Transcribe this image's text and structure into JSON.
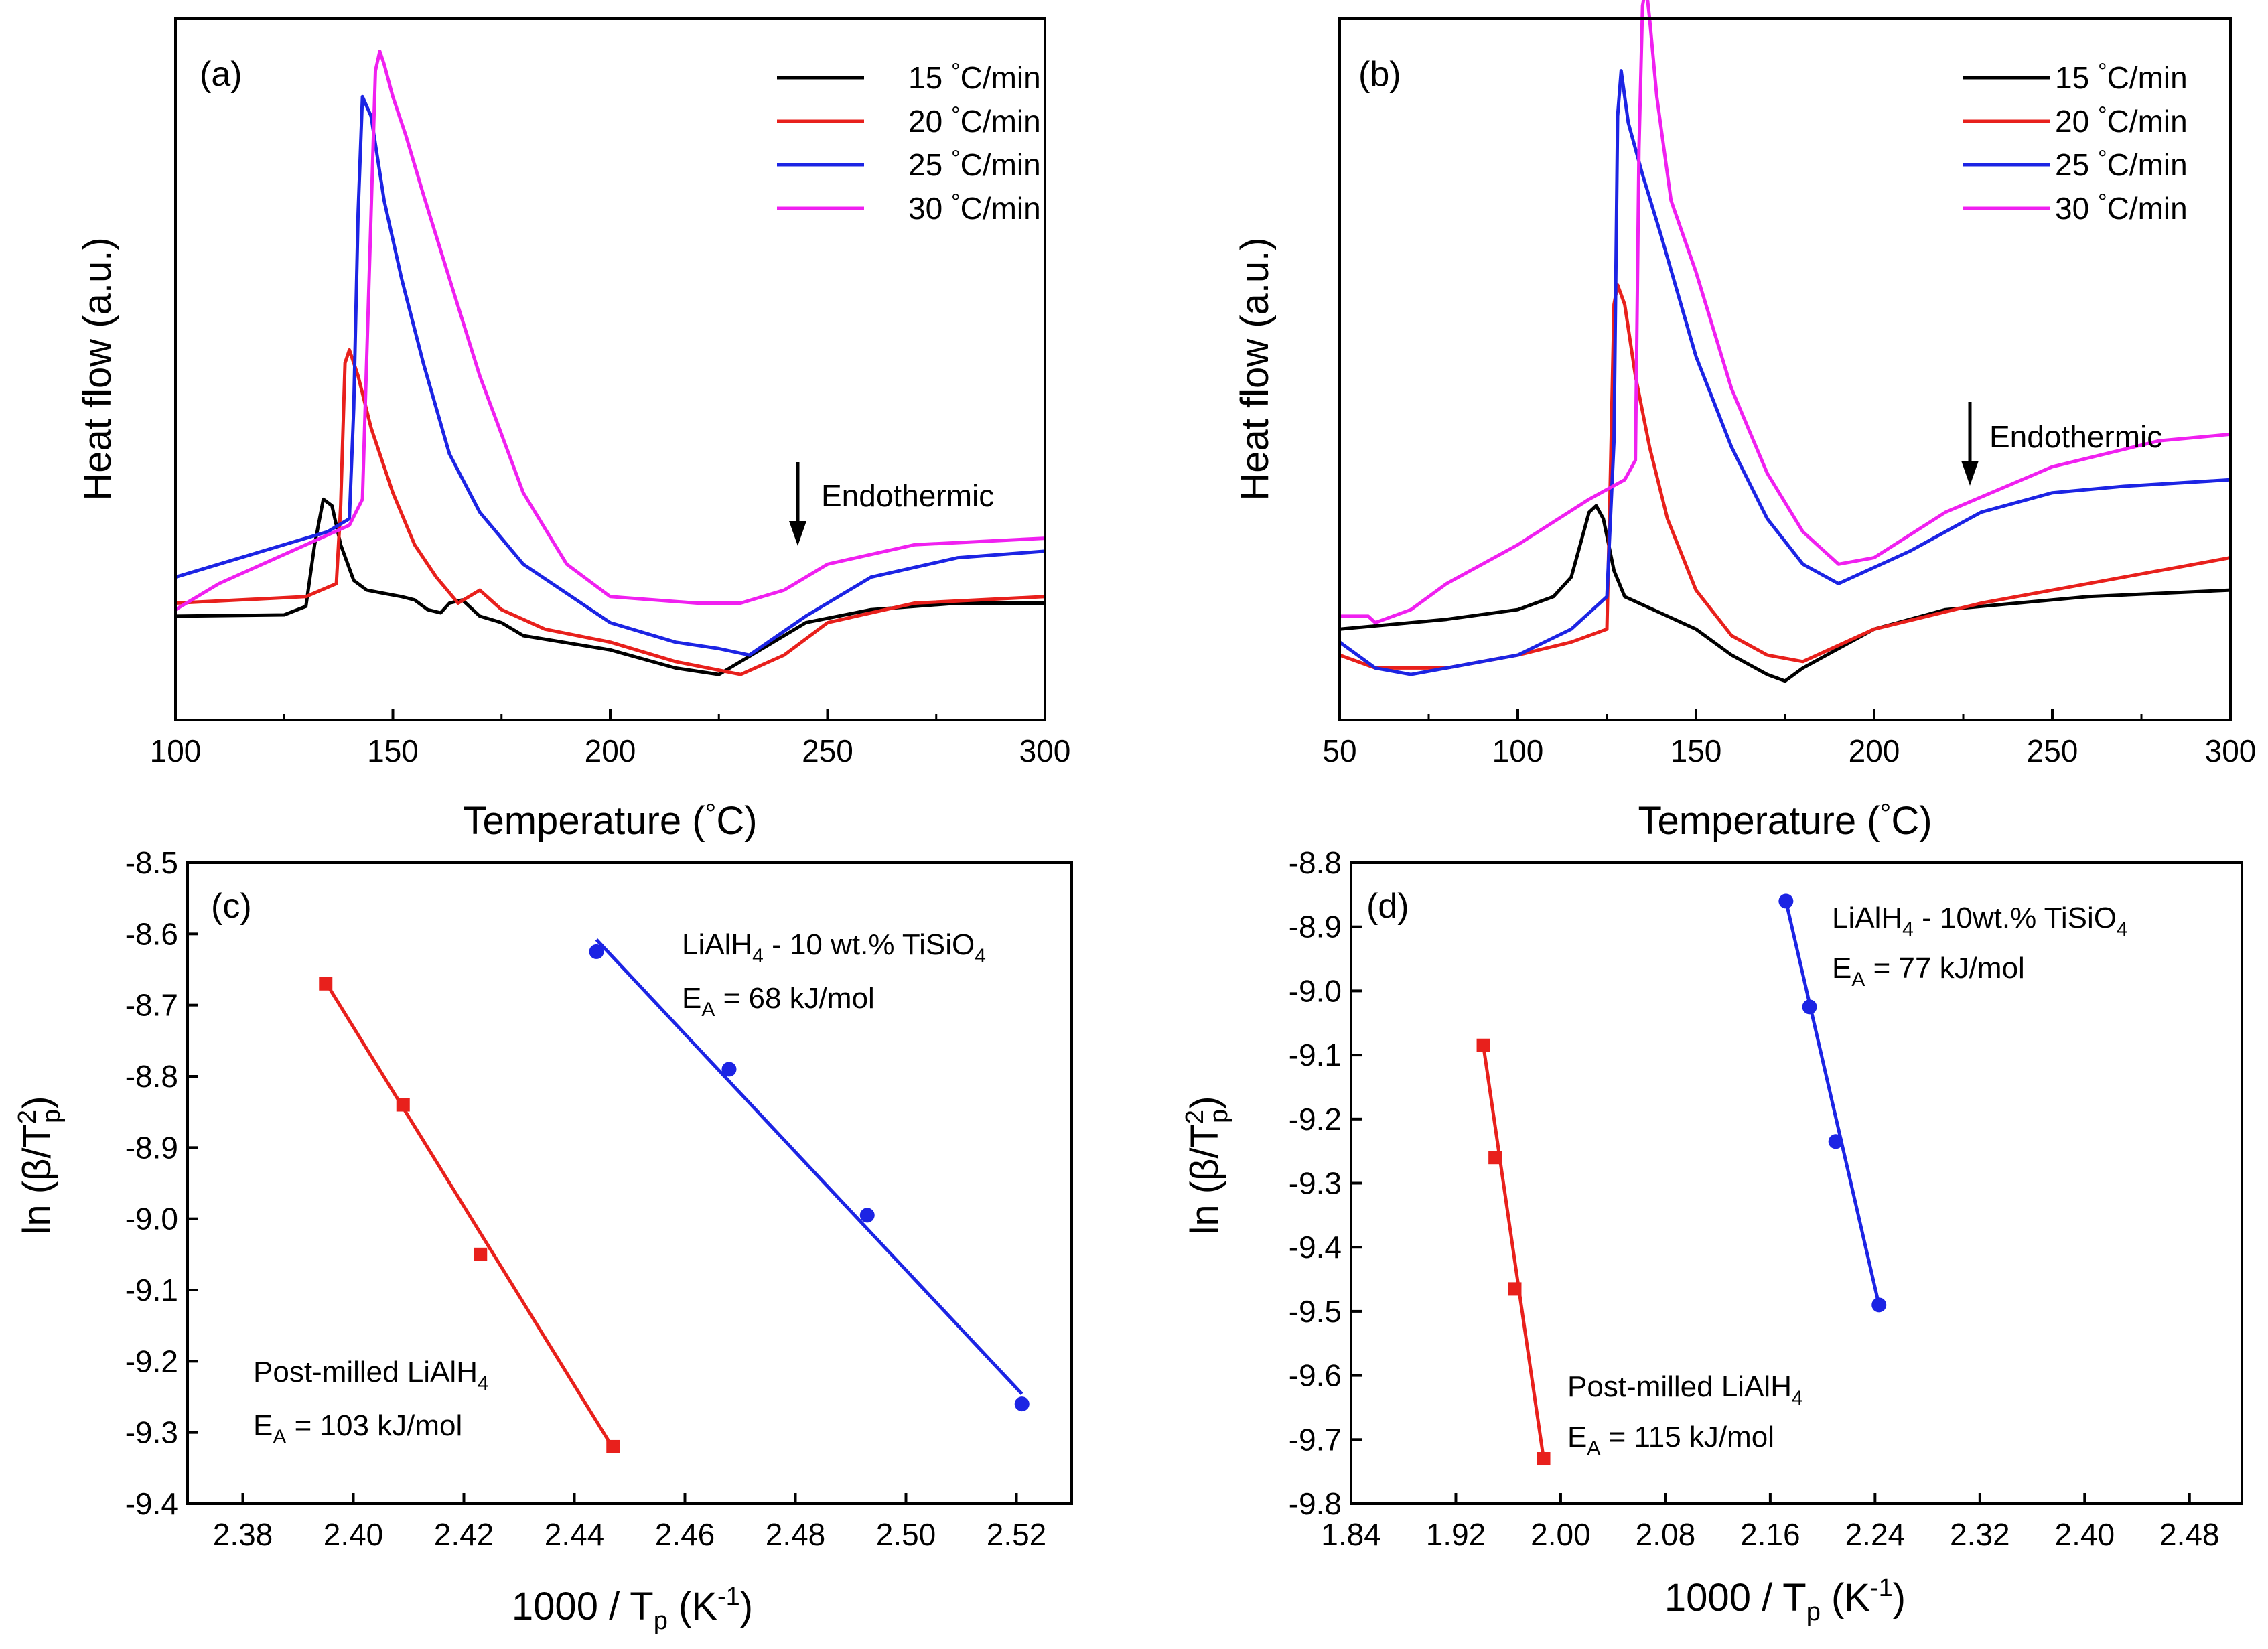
{
  "chart_data": [
    {
      "panel": "(a)",
      "type": "line",
      "xlabel": "Temperature (°C)",
      "ylabel": "Heat flow (a.u.)",
      "xlim": [
        100,
        300
      ],
      "ylim": [
        -0.8,
        10
      ],
      "xticks": [
        100,
        150,
        200,
        250,
        300
      ],
      "y_tick_labels": false,
      "annotation": "Endothermic",
      "annotation_arrow": "down",
      "legend_position": "top-right",
      "series": [
        {
          "name": "15 °C/min",
          "color": "#000000",
          "x": [
            100,
            125,
            130,
            132,
            134,
            136,
            138,
            141,
            144,
            148,
            152,
            155,
            158,
            161,
            163,
            166,
            170,
            175,
            180,
            200,
            215,
            225,
            235,
            245,
            260,
            280,
            300
          ],
          "y": [
            0.8,
            0.82,
            0.95,
            1.9,
            2.6,
            2.5,
            1.9,
            1.35,
            1.2,
            1.15,
            1.1,
            1.05,
            0.9,
            0.85,
            1.0,
            1.05,
            0.8,
            0.7,
            0.5,
            0.28,
            0.0,
            -0.1,
            0.3,
            0.7,
            0.9,
            1.0,
            1.0
          ]
        },
        {
          "name": "20 °C/min",
          "color": "#e8201c",
          "x": [
            100,
            130,
            137,
            138,
            139,
            140,
            142,
            145,
            150,
            155,
            160,
            165,
            170,
            175,
            185,
            200,
            215,
            230,
            240,
            250,
            270,
            300
          ],
          "y": [
            1.0,
            1.1,
            1.3,
            2.5,
            4.7,
            4.9,
            4.5,
            3.7,
            2.7,
            1.9,
            1.4,
            1.0,
            1.2,
            0.9,
            0.6,
            0.4,
            0.1,
            -0.1,
            0.2,
            0.7,
            1.0,
            1.1
          ]
        },
        {
          "name": "25 °C/min",
          "color": "#1c24e4",
          "x": [
            100,
            120,
            135,
            140,
            141,
            142,
            143,
            145,
            148,
            152,
            157,
            163,
            170,
            180,
            200,
            215,
            225,
            232,
            245,
            260,
            280,
            300
          ],
          "y": [
            1.4,
            1.8,
            2.1,
            2.3,
            4.0,
            7.0,
            8.8,
            8.5,
            7.2,
            6.0,
            4.7,
            3.3,
            2.4,
            1.6,
            0.7,
            0.4,
            0.3,
            0.2,
            0.8,
            1.4,
            1.7,
            1.8
          ]
        },
        {
          "name": "30 °C/min",
          "color": "#f020f0",
          "x": [
            100,
            110,
            120,
            130,
            140,
            143,
            145,
            146,
            147,
            148,
            150,
            153,
            157,
            163,
            170,
            180,
            190,
            200,
            220,
            230,
            240,
            250,
            270,
            300
          ],
          "y": [
            0.9,
            1.3,
            1.6,
            1.9,
            2.2,
            2.6,
            7.0,
            9.2,
            9.5,
            9.3,
            8.8,
            8.2,
            7.3,
            6.0,
            4.5,
            2.7,
            1.6,
            1.1,
            1.0,
            1.0,
            1.2,
            1.6,
            1.9,
            2.0
          ]
        }
      ]
    },
    {
      "panel": "(b)",
      "type": "line",
      "xlabel": "Temperature (°C)",
      "ylabel": "Heat flow (a.u.)",
      "xlim": [
        50,
        300
      ],
      "ylim": [
        -0.8,
        10
      ],
      "xticks": [
        50,
        100,
        150,
        200,
        250,
        300
      ],
      "y_tick_labels": false,
      "annotation": "Endothermic",
      "annotation_arrow": "down",
      "legend_position": "top-right",
      "series": [
        {
          "name": "15 °C/min",
          "color": "#000000",
          "x": [
            50,
            80,
            100,
            110,
            115,
            118,
            120,
            122,
            124,
            127,
            130,
            140,
            150,
            160,
            170,
            175,
            180,
            200,
            220,
            260,
            300
          ],
          "y": [
            0.6,
            0.75,
            0.9,
            1.1,
            1.4,
            2.0,
            2.4,
            2.5,
            2.3,
            1.5,
            1.1,
            0.85,
            0.6,
            0.2,
            -0.1,
            -0.2,
            0.0,
            0.6,
            0.9,
            1.1,
            1.2
          ]
        },
        {
          "name": "20 °C/min",
          "color": "#e8201c",
          "x": [
            50,
            60,
            80,
            100,
            115,
            125,
            126,
            127,
            128,
            130,
            133,
            137,
            142,
            150,
            160,
            170,
            180,
            200,
            230,
            260,
            300
          ],
          "y": [
            0.2,
            0.0,
            0.0,
            0.2,
            0.4,
            0.6,
            3.0,
            5.6,
            5.9,
            5.6,
            4.5,
            3.4,
            2.3,
            1.2,
            0.5,
            0.2,
            0.1,
            0.6,
            1.0,
            1.3,
            1.7
          ]
        },
        {
          "name": "25 °C/min",
          "color": "#1c24e4",
          "x": [
            50,
            60,
            70,
            80,
            100,
            115,
            125,
            127,
            128,
            129,
            131,
            135,
            140,
            150,
            160,
            170,
            180,
            190,
            210,
            230,
            250,
            270,
            300
          ],
          "y": [
            0.4,
            0.0,
            -0.1,
            0.0,
            0.2,
            0.6,
            1.1,
            3.5,
            8.5,
            9.2,
            8.4,
            7.6,
            6.7,
            4.8,
            3.4,
            2.3,
            1.6,
            1.3,
            1.8,
            2.4,
            2.7,
            2.8,
            2.9
          ]
        },
        {
          "name": "30 °C/min",
          "color": "#f020f0",
          "x": [
            50,
            58,
            60,
            70,
            80,
            100,
            120,
            130,
            133,
            134,
            135,
            136,
            137,
            139,
            143,
            150,
            160,
            170,
            180,
            190,
            200,
            220,
            250,
            280,
            300
          ],
          "y": [
            0.8,
            0.8,
            0.7,
            0.9,
            1.3,
            1.9,
            2.6,
            2.9,
            3.2,
            8.0,
            10.2,
            10.5,
            10.0,
            8.8,
            7.2,
            6.1,
            4.3,
            3.0,
            2.1,
            1.6,
            1.7,
            2.4,
            3.1,
            3.5,
            3.6
          ]
        }
      ]
    },
    {
      "panel": "(c)",
      "type": "scatter",
      "xlabel": "1000 / T_p (K⁻¹)",
      "ylabel": "ln (β/T_p²)",
      "xlim": [
        2.37,
        2.53
      ],
      "ylim": [
        -9.4,
        -8.5
      ],
      "xticks": [
        2.38,
        2.4,
        2.42,
        2.44,
        2.46,
        2.48,
        2.5,
        2.52
      ],
      "yticks": [
        -9.4,
        -9.3,
        -9.2,
        -9.1,
        -9.0,
        -8.9,
        -8.8,
        -8.7,
        -8.6,
        -8.5
      ],
      "series": [
        {
          "name": "Post-milled LiAlH4",
          "color": "#e8201c",
          "marker": "square",
          "x": [
            2.395,
            2.409,
            2.423,
            2.447
          ],
          "y": [
            -8.67,
            -8.84,
            -9.05,
            -9.32
          ],
          "fit": [
            [
              2.395,
              -8.668
            ],
            [
              2.447,
              -9.322
            ]
          ],
          "label": "E_A = 103 kJ/mol"
        },
        {
          "name": "LiAlH4 - 10 wt.% TiSiO4",
          "color": "#1c24e4",
          "marker": "circle",
          "x": [
            2.444,
            2.468,
            2.493,
            2.521
          ],
          "y": [
            -8.625,
            -8.79,
            -8.995,
            -9.26
          ],
          "fit": [
            [
              2.444,
              -8.608
            ],
            [
              2.521,
              -9.246
            ]
          ],
          "label": "E_A = 68 kJ/mol"
        }
      ]
    },
    {
      "panel": "(d)",
      "type": "scatter",
      "xlabel": "1000 / T_p (K⁻¹)",
      "ylabel": "ln (β/T_p²)",
      "xlim": [
        1.84,
        2.52
      ],
      "ylim": [
        -9.8,
        -8.8
      ],
      "xticks": [
        1.84,
        1.92,
        2.0,
        2.08,
        2.16,
        2.24,
        2.32,
        2.4,
        2.48
      ],
      "yticks": [
        -9.8,
        -9.7,
        -9.6,
        -9.5,
        -9.4,
        -9.3,
        -9.2,
        -9.1,
        -9.0,
        -8.9,
        -8.8
      ],
      "series": [
        {
          "name": "Post-milled LiAlH4",
          "color": "#e8201c",
          "marker": "square",
          "x": [
            1.941,
            1.95,
            1.965,
            1.987
          ],
          "y": [
            -9.085,
            -9.26,
            -9.465,
            -9.73
          ],
          "fit": [
            [
              1.941,
              -9.085
            ],
            [
              1.987,
              -9.73
            ]
          ],
          "label": "E_A = 115 kJ/mol"
        },
        {
          "name": "LiAlH4 - 10wt.% TiSiO4",
          "color": "#1c24e4",
          "marker": "circle",
          "x": [
            2.172,
            2.19,
            2.21,
            2.243
          ],
          "y": [
            -8.86,
            -9.025,
            -9.235,
            -9.49
          ],
          "fit": [
            [
              2.172,
              -8.86
            ],
            [
              2.243,
              -9.49
            ]
          ],
          "label": "E_A = 77 kJ/mol"
        }
      ]
    }
  ],
  "text": {
    "a": {
      "panel": "(a)",
      "xlabel_pre": "Temperature (",
      "deg": "°",
      "xlabel_post": "C)",
      "ylabel": "Heat flow (a.u.)",
      "endo": "Endothermic",
      "legend": [
        {
          "num": "15 ",
          "deg": "°",
          "unit": "C/min"
        },
        {
          "num": "20 ",
          "deg": "°",
          "unit": "C/min"
        },
        {
          "num": "25 ",
          "deg": "°",
          "unit": "C/min"
        },
        {
          "num": "30 ",
          "deg": "°",
          "unit": "C/min"
        }
      ]
    },
    "b": {
      "panel": "(b)",
      "xlabel_pre": "Temperature (",
      "deg": "°",
      "xlabel_post": "C)",
      "ylabel": "Heat flow (a.u.)",
      "endo": "Endothermic",
      "legend": [
        {
          "num": "15 ",
          "deg": "°",
          "unit": "C/min"
        },
        {
          "num": "20 ",
          "deg": "°",
          "unit": "C/min"
        },
        {
          "num": "25 ",
          "deg": "°",
          "unit": "C/min"
        },
        {
          "num": "30 ",
          "deg": "°",
          "unit": "C/min"
        }
      ]
    },
    "c": {
      "panel": "(c)",
      "xlabel": {
        "pre": "1000 / T",
        "sub": "p",
        "mid": " (K",
        "sup": "-1",
        "post": ")"
      },
      "ylabel": {
        "pre": "ln (β/T",
        "sup": "2",
        "sub": "p",
        "post": ")"
      },
      "blue_label": {
        "pre": "LiAlH",
        "sub1": "4",
        "mid": " - 10 wt.% TiSiO",
        "sub2": "4"
      },
      "blue_ea": {
        "pre": "E",
        "sub": "A",
        "post": " = 68 kJ/mol"
      },
      "red_label": {
        "pre": "Post-milled LiAlH",
        "sub": "4"
      },
      "red_ea": {
        "pre": "E",
        "sub": "A",
        "post": " = 103 kJ/mol"
      }
    },
    "d": {
      "panel": "(d)",
      "xlabel": {
        "pre": "1000 / T",
        "sub": "p",
        "mid": " (K",
        "sup": "-1",
        "post": ")"
      },
      "ylabel": {
        "pre": "ln (β/T",
        "sup": "2",
        "sub": "p",
        "post": ")"
      },
      "blue_label": {
        "pre": "LiAlH",
        "sub1": "4",
        "mid": " - 10wt.% TiSiO",
        "sub2": "4"
      },
      "blue_ea": {
        "pre": "E",
        "sub": "A",
        "post": " = 77 kJ/mol"
      },
      "red_label": {
        "pre": "Post-milled LiAlH",
        "sub": "4"
      },
      "red_ea": {
        "pre": "E",
        "sub": "A",
        "post": " = 115 kJ/mol"
      }
    }
  }
}
